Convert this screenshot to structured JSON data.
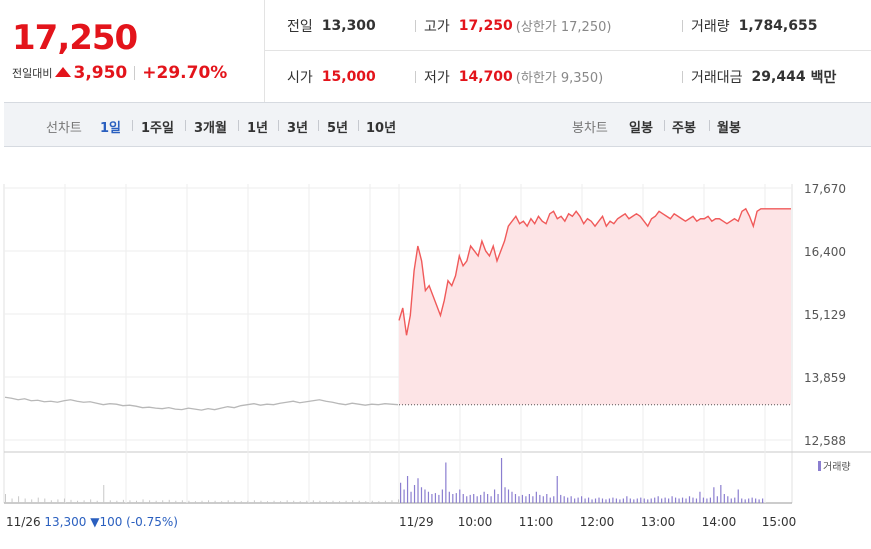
{
  "quote": {
    "price": "17,250",
    "change_label": "전일대비",
    "change_value": "3,950",
    "change_pct": "+29.70%",
    "prev_close_label": "전일",
    "prev_close": "13,300",
    "high_label": "고가",
    "high": "17,250",
    "upper_limit": "(상한가 17,250)",
    "volume_label": "거래량",
    "volume": "1,784,655",
    "open_label": "시가",
    "open": "15,000",
    "low_label": "저가",
    "low": "14,700",
    "lower_limit": "(하한가 9,350)",
    "amount_label": "거래대금",
    "amount": "29,444",
    "amount_unit": "백만"
  },
  "tabs": {
    "line_label": "선차트",
    "line_tabs": [
      "1일",
      "1주일",
      "3개월",
      "1년",
      "3년",
      "5년",
      "10년"
    ],
    "selected": "1일",
    "candle_label": "봉차트",
    "candle_tabs": [
      "일봉",
      "주봉",
      "월봉"
    ]
  },
  "colors": {
    "up": "#e3141b",
    "down": "#2a5fbf",
    "line_today": "#f05a5a",
    "fill_today": "#fde4e6",
    "line_prev": "#b8b8b8",
    "volume_bar": "#8b7ed0"
  },
  "chart_data": {
    "type": "line",
    "y_ticks": [
      17670,
      16400,
      15129,
      13859,
      12588
    ],
    "ylim": [
      12588,
      17670
    ],
    "x_ticks": [
      "11/29",
      "10:00",
      "11:00",
      "12:00",
      "13:00",
      "14:00",
      "15:00"
    ],
    "prev_day_label": "11/26",
    "prev_day_close_text": "13,300",
    "prev_day_change_text": "100",
    "prev_day_change_pct": "(-0.75%)",
    "prev_close_value": 13300,
    "volume_legend": "거래량",
    "series": [
      {
        "day": "11/26",
        "points": [
          13450,
          13430,
          13400,
          13420,
          13380,
          13390,
          13360,
          13370,
          13350,
          13380,
          13400,
          13370,
          13350,
          13360,
          13330,
          13300,
          13320,
          13310,
          13280,
          13290,
          13270,
          13240,
          13250,
          13230,
          13220,
          13240,
          13210,
          13200,
          13230,
          13210,
          13190,
          13220,
          13200,
          13230,
          13260,
          13240,
          13280,
          13300,
          13320,
          13290,
          13310,
          13300,
          13330,
          13350,
          13370,
          13340,
          13360,
          13380,
          13400,
          13370,
          13350,
          13320,
          13300,
          13330,
          13310,
          13290,
          13310,
          13300,
          13320,
          13310,
          13300
        ]
      },
      {
        "day": "11/29",
        "start_time": "09:00",
        "end_time": "15:30",
        "points": [
          15000,
          15250,
          14700,
          15100,
          16000,
          16500,
          16200,
          15600,
          15700,
          15500,
          15300,
          15100,
          15400,
          15800,
          15700,
          15900,
          16300,
          16100,
          16200,
          16500,
          16400,
          16300,
          16600,
          16400,
          16300,
          16500,
          16200,
          16400,
          16600,
          16900,
          17000,
          17100,
          16950,
          17000,
          16900,
          17050,
          16950,
          17100,
          17000,
          16950,
          17150,
          17200,
          17050,
          17100,
          17000,
          17150,
          17100,
          17200,
          17100,
          16950,
          17050,
          17000,
          16900,
          17000,
          17100,
          16900,
          17000,
          16950,
          17050,
          17100,
          17150,
          17050,
          17100,
          17150,
          17100,
          17000,
          16900,
          17050,
          17100,
          17200,
          17150,
          17100,
          17050,
          17150,
          17100,
          17050,
          17000,
          17050,
          17100,
          17000,
          17050,
          17050,
          17100,
          17000,
          17050,
          17050,
          17000,
          16950,
          17000,
          17050,
          17000,
          17200,
          17250,
          17100,
          16900,
          17200,
          17250,
          17250,
          17250,
          17250,
          17250,
          17250,
          17250,
          17250,
          17250
        ]
      }
    ],
    "volume": {
      "prev_day": [
        0.2,
        0.1,
        0.15,
        0.1,
        0.08,
        0.12,
        0.1,
        0.06,
        0.08,
        0.1,
        0.07,
        0.05,
        0.06,
        0.08,
        0.05,
        0.4,
        0.06,
        0.05,
        0.07,
        0.06,
        0.05,
        0.08,
        0.06,
        0.05,
        0.06,
        0.07,
        0.05,
        0.06,
        0.05,
        0.04,
        0.05,
        0.06,
        0.05,
        0.04,
        0.06,
        0.05,
        0.04,
        0.05,
        0.06,
        0.05,
        0.04,
        0.05,
        0.04,
        0.06,
        0.05,
        0.04,
        0.05,
        0.06,
        0.05,
        0.04,
        0.05,
        0.04,
        0.05,
        0.06,
        0.05,
        0.04,
        0.05,
        0.04,
        0.05,
        0.06,
        0.08
      ],
      "today": [
        0.45,
        0.3,
        0.6,
        0.25,
        0.4,
        0.55,
        0.35,
        0.3,
        0.25,
        0.2,
        0.22,
        0.18,
        0.3,
        0.9,
        0.25,
        0.2,
        0.22,
        0.3,
        0.2,
        0.15,
        0.18,
        0.2,
        0.15,
        0.18,
        0.25,
        0.2,
        0.15,
        0.3,
        0.2,
        1.0,
        0.35,
        0.3,
        0.25,
        0.2,
        0.15,
        0.18,
        0.15,
        0.2,
        0.15,
        0.25,
        0.18,
        0.15,
        0.2,
        0.12,
        0.15,
        0.6,
        0.18,
        0.15,
        0.12,
        0.15,
        0.1,
        0.12,
        0.15,
        0.1,
        0.12,
        0.08,
        0.1,
        0.12,
        0.1,
        0.08,
        0.1,
        0.12,
        0.1,
        0.08,
        0.1,
        0.15,
        0.1,
        0.08,
        0.1,
        0.12,
        0.1,
        0.08,
        0.1,
        0.12,
        0.15,
        0.1,
        0.12,
        0.1,
        0.15,
        0.12,
        0.1,
        0.12,
        0.1,
        0.15,
        0.12,
        0.1,
        0.25,
        0.12,
        0.1,
        0.12,
        0.35,
        0.15,
        0.4,
        0.2,
        0.15,
        0.1,
        0.12,
        0.3,
        0.1,
        0.08,
        0.1,
        0.12,
        0.1,
        0.08,
        0.1
      ]
    }
  }
}
